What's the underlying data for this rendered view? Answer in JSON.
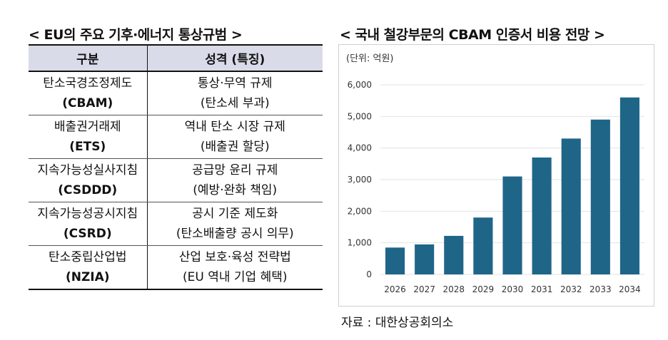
{
  "left_title": "< EU의 주요 기후·에너지 통상규범 >",
  "right_title": "< 국내 철강부문의 CBAM 인증서 비용 전망 >",
  "table": {
    "headers": [
      "구분",
      "성격 (특징)"
    ],
    "rows": [
      {
        "name": "탄소국경조정제도",
        "abbr": "(CBAM)",
        "nature": "통상·무역 규제",
        "detail": "(탄소세 부과)"
      },
      {
        "name": "배출권거래제",
        "abbr": "(ETS)",
        "nature": "역내 탄소 시장 규제",
        "detail": "(배출권 할당)"
      },
      {
        "name": "지속가능성실사지침",
        "abbr": "(CSDDD)",
        "nature": "공급망 윤리 규제",
        "detail": "(예방·완화 책임)"
      },
      {
        "name": "지속가능성공시지침",
        "abbr": "(CSRD)",
        "nature": "공시 기준 제도화",
        "detail": "(탄소배출량 공시 의무)"
      },
      {
        "name": "탄소중립산업법",
        "abbr": "(NZIA)",
        "nature": "산업 보호·육성 전략법",
        "detail": "(EU 역내 기업 혜택)"
      }
    ]
  },
  "chart_data": {
    "type": "bar",
    "title": "< 국내 철강부문의 CBAM 인증서 비용 전망 >",
    "unit": "(단위: 억원)",
    "categories": [
      "2026",
      "2027",
      "2028",
      "2029",
      "2030",
      "2031",
      "2032",
      "2033",
      "2034"
    ],
    "values": [
      850,
      950,
      1220,
      1800,
      3100,
      3700,
      4300,
      4900,
      5600
    ],
    "ylim": [
      0,
      6000
    ],
    "yticks": [
      0,
      1000,
      2000,
      3000,
      4000,
      5000,
      6000
    ],
    "ytick_labels": [
      "0",
      "1,000",
      "2,000",
      "3,000",
      "4,000",
      "5,000",
      "6,000"
    ],
    "bar_color": "#1f6588",
    "grid": true,
    "legend": "none"
  },
  "source": "자료 : 대한상공회의소"
}
